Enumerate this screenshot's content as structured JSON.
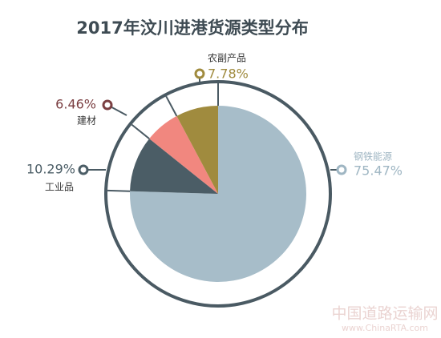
{
  "chart_data": {
    "type": "pie",
    "title": "2017年汶川进港货源类型分布",
    "categories": [
      "钢铁能源",
      "工业品",
      "建材",
      "农副产品"
    ],
    "values": [
      75.47,
      10.29,
      6.46,
      7.78
    ],
    "value_labels": [
      "75.47%",
      "10.29%",
      "6.46%",
      "7.78%"
    ],
    "colors": [
      "#a7bdc9",
      "#4b5d66",
      "#f1877f",
      "#a08b3e"
    ],
    "label_colors": [
      "#9fb6c3",
      "#4b5d66",
      "#7b3f42",
      "#a08b3e"
    ],
    "watermark": "中国道路运输网",
    "watermark_url": "www.ChinaRTA.com"
  }
}
